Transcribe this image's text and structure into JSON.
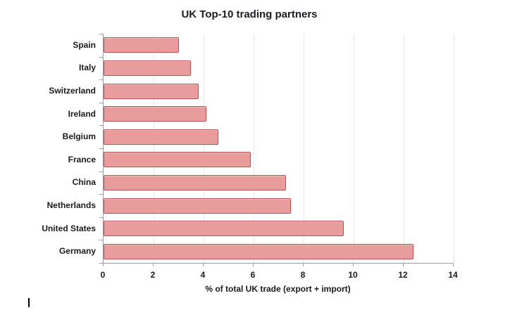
{
  "chart_data": {
    "type": "bar",
    "orientation": "horizontal",
    "title": "UK Top-10 trading partners",
    "xlabel": "% of total UK trade (export + import)",
    "ylabel": "",
    "categories": [
      "Spain",
      "Italy",
      "Switzerland",
      "Ireland",
      "Belgium",
      "France",
      "China",
      "Netherlands",
      "United States",
      "Germany"
    ],
    "values": [
      3.0,
      3.5,
      3.8,
      4.1,
      4.6,
      5.9,
      7.3,
      7.5,
      9.6,
      12.4
    ],
    "xlim": [
      0,
      14
    ],
    "xticks": [
      0,
      2,
      4,
      6,
      8,
      10,
      12,
      14
    ],
    "grid": "vertical-light",
    "legend": "none",
    "colors": {
      "bar_fill": "#e99c9c",
      "bar_border": "#b5534f",
      "axis": "#9c9c9c",
      "gridline": "#e8e8e8",
      "text": "#1b1b1b",
      "background": "#ffffff"
    }
  },
  "artifacts": {
    "text_cursor_visible": true
  }
}
